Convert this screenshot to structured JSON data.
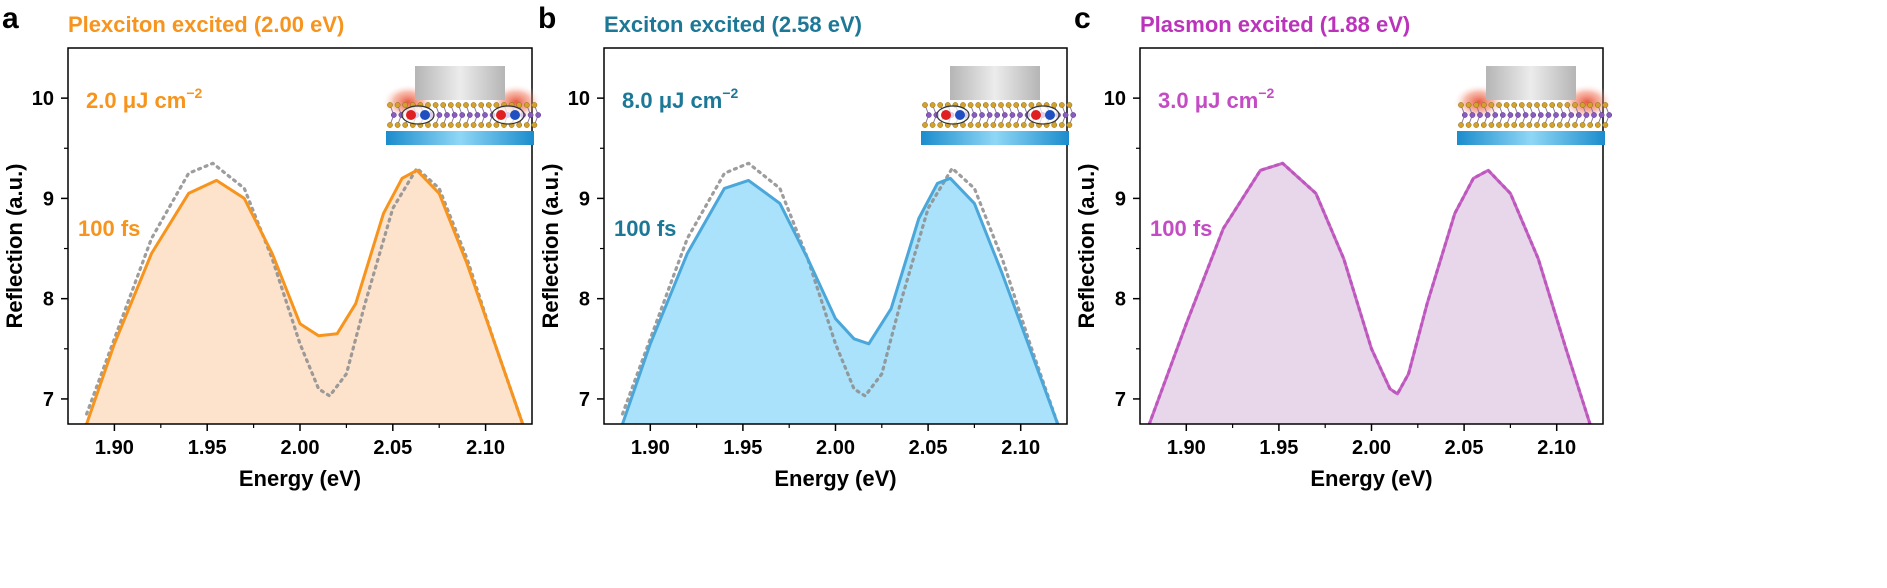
{
  "chart_data": [
    {
      "type": "area",
      "panel_letter": "a",
      "title": "Plexciton excited (2.00 eV)",
      "xlabel": "Energy (eV)",
      "ylabel": "Reflection (a.u.)",
      "xlim": [
        1.875,
        2.125
      ],
      "ylim": [
        6.75,
        10.5
      ],
      "xticks": [
        1.9,
        1.95,
        2.0,
        2.05,
        2.1
      ],
      "xtick_labels": [
        "1.90",
        "1.95",
        "2.00",
        "2.05",
        "2.10"
      ],
      "yticks": [
        7,
        8,
        9,
        10
      ],
      "ytick_labels": [
        "7",
        "8",
        "9",
        "10"
      ],
      "annotations": {
        "fluence_text": "2.0 μJ cm",
        "fluence_exp": "−2",
        "delay": "100 fs"
      },
      "colors": {
        "accent": "#F7941D",
        "fill": "#FDE3CC",
        "title": "#F7941D",
        "reference": "#8C8C8C"
      },
      "inset": {
        "glow_positions": "edges",
        "show_dipoles": true
      },
      "series": [
        {
          "name": "pumped",
          "style": "solid",
          "x": [
            1.885,
            1.9,
            1.92,
            1.94,
            1.955,
            1.97,
            1.985,
            2.0,
            2.01,
            2.02,
            2.03,
            2.045,
            2.055,
            2.063,
            2.075,
            2.09,
            2.105,
            2.12
          ],
          "y": [
            6.75,
            7.55,
            8.45,
            9.05,
            9.18,
            9.0,
            8.45,
            7.75,
            7.63,
            7.65,
            7.95,
            8.85,
            9.2,
            9.28,
            9.05,
            8.35,
            7.55,
            6.75
          ]
        },
        {
          "name": "reference",
          "style": "dotted",
          "x": [
            1.885,
            1.9,
            1.92,
            1.94,
            1.953,
            1.97,
            1.985,
            2.0,
            2.01,
            2.016,
            2.025,
            2.035,
            2.05,
            2.063,
            2.075,
            2.09,
            2.105,
            2.12
          ],
          "y": [
            6.85,
            7.6,
            8.6,
            9.25,
            9.35,
            9.1,
            8.4,
            7.55,
            7.1,
            7.03,
            7.25,
            7.95,
            8.9,
            9.3,
            9.1,
            8.4,
            7.55,
            6.75
          ]
        }
      ]
    },
    {
      "type": "area",
      "panel_letter": "b",
      "title": "Exciton excited (2.58 eV)",
      "xlabel": "Energy (eV)",
      "ylabel": "Reflection (a.u.)",
      "xlim": [
        1.875,
        2.125
      ],
      "ylim": [
        6.75,
        10.5
      ],
      "xticks": [
        1.9,
        1.95,
        2.0,
        2.05,
        2.1
      ],
      "xtick_labels": [
        "1.90",
        "1.95",
        "2.00",
        "2.05",
        "2.10"
      ],
      "yticks": [
        7,
        8,
        9,
        10
      ],
      "ytick_labels": [
        "7",
        "8",
        "9",
        "10"
      ],
      "annotations": {
        "fluence_text": "8.0 μJ cm",
        "fluence_exp": "−2",
        "delay": "100 fs"
      },
      "colors": {
        "accent": "#4BA7DA",
        "fill": "#A9E2FA",
        "title": "#1C7896",
        "reference": "#8C8C8C"
      },
      "inset": {
        "glow_positions": "none",
        "show_dipoles": true
      },
      "series": [
        {
          "name": "pumped",
          "style": "solid",
          "x": [
            1.885,
            1.9,
            1.92,
            1.94,
            1.953,
            1.97,
            1.985,
            2.0,
            2.01,
            2.018,
            2.03,
            2.045,
            2.055,
            2.062,
            2.075,
            2.09,
            2.105,
            2.12
          ],
          "y": [
            6.75,
            7.55,
            8.45,
            9.1,
            9.18,
            8.95,
            8.4,
            7.8,
            7.6,
            7.55,
            7.9,
            8.8,
            9.15,
            9.2,
            8.95,
            8.25,
            7.5,
            6.75
          ]
        },
        {
          "name": "reference",
          "style": "dotted",
          "x": [
            1.885,
            1.9,
            1.92,
            1.94,
            1.953,
            1.97,
            1.985,
            2.0,
            2.01,
            2.016,
            2.025,
            2.035,
            2.05,
            2.063,
            2.075,
            2.09,
            2.105,
            2.12
          ],
          "y": [
            6.85,
            7.6,
            8.6,
            9.25,
            9.35,
            9.1,
            8.4,
            7.55,
            7.1,
            7.03,
            7.25,
            7.95,
            8.9,
            9.3,
            9.1,
            8.4,
            7.55,
            6.75
          ]
        }
      ]
    },
    {
      "type": "area",
      "panel_letter": "c",
      "title": "Plasmon excited (1.88 eV)",
      "xlabel": "Energy (eV)",
      "ylabel": "Reflection (a.u.)",
      "xlim": [
        1.875,
        2.125
      ],
      "ylim": [
        6.75,
        10.5
      ],
      "xticks": [
        1.9,
        1.95,
        2.0,
        2.05,
        2.1
      ],
      "xtick_labels": [
        "1.90",
        "1.95",
        "2.00",
        "2.05",
        "2.10"
      ],
      "yticks": [
        7,
        8,
        9,
        10
      ],
      "ytick_labels": [
        "7",
        "8",
        "9",
        "10"
      ],
      "annotations": {
        "fluence_text": "3.0 μJ cm",
        "fluence_exp": "−2",
        "delay": "100 fs"
      },
      "colors": {
        "accent": "#C34BC3",
        "fill": "#E8D6EA",
        "title": "#BB33BB",
        "reference": "#8C8C8C"
      },
      "inset": {
        "glow_positions": "edges",
        "show_dipoles": false
      },
      "series": [
        {
          "name": "pumped",
          "style": "solid",
          "x": [
            1.88,
            1.9,
            1.92,
            1.94,
            1.952,
            1.97,
            1.985,
            2.0,
            2.01,
            2.014,
            2.02,
            2.03,
            2.045,
            2.055,
            2.063,
            2.075,
            2.09,
            2.105,
            2.118
          ],
          "y": [
            6.75,
            7.75,
            8.7,
            9.28,
            9.35,
            9.05,
            8.4,
            7.5,
            7.1,
            7.05,
            7.25,
            7.95,
            8.85,
            9.2,
            9.28,
            9.05,
            8.4,
            7.5,
            6.75
          ]
        },
        {
          "name": "reference",
          "style": "dotted",
          "x": [
            1.88,
            1.9,
            1.92,
            1.94,
            1.952,
            1.97,
            1.985,
            2.0,
            2.01,
            2.014,
            2.02,
            2.03,
            2.045,
            2.055,
            2.063,
            2.075,
            2.09,
            2.105,
            2.118
          ],
          "y": [
            6.75,
            7.75,
            8.7,
            9.28,
            9.35,
            9.05,
            8.4,
            7.5,
            7.1,
            7.05,
            7.25,
            7.95,
            8.85,
            9.2,
            9.28,
            9.05,
            8.4,
            7.5,
            6.75
          ]
        }
      ]
    }
  ]
}
